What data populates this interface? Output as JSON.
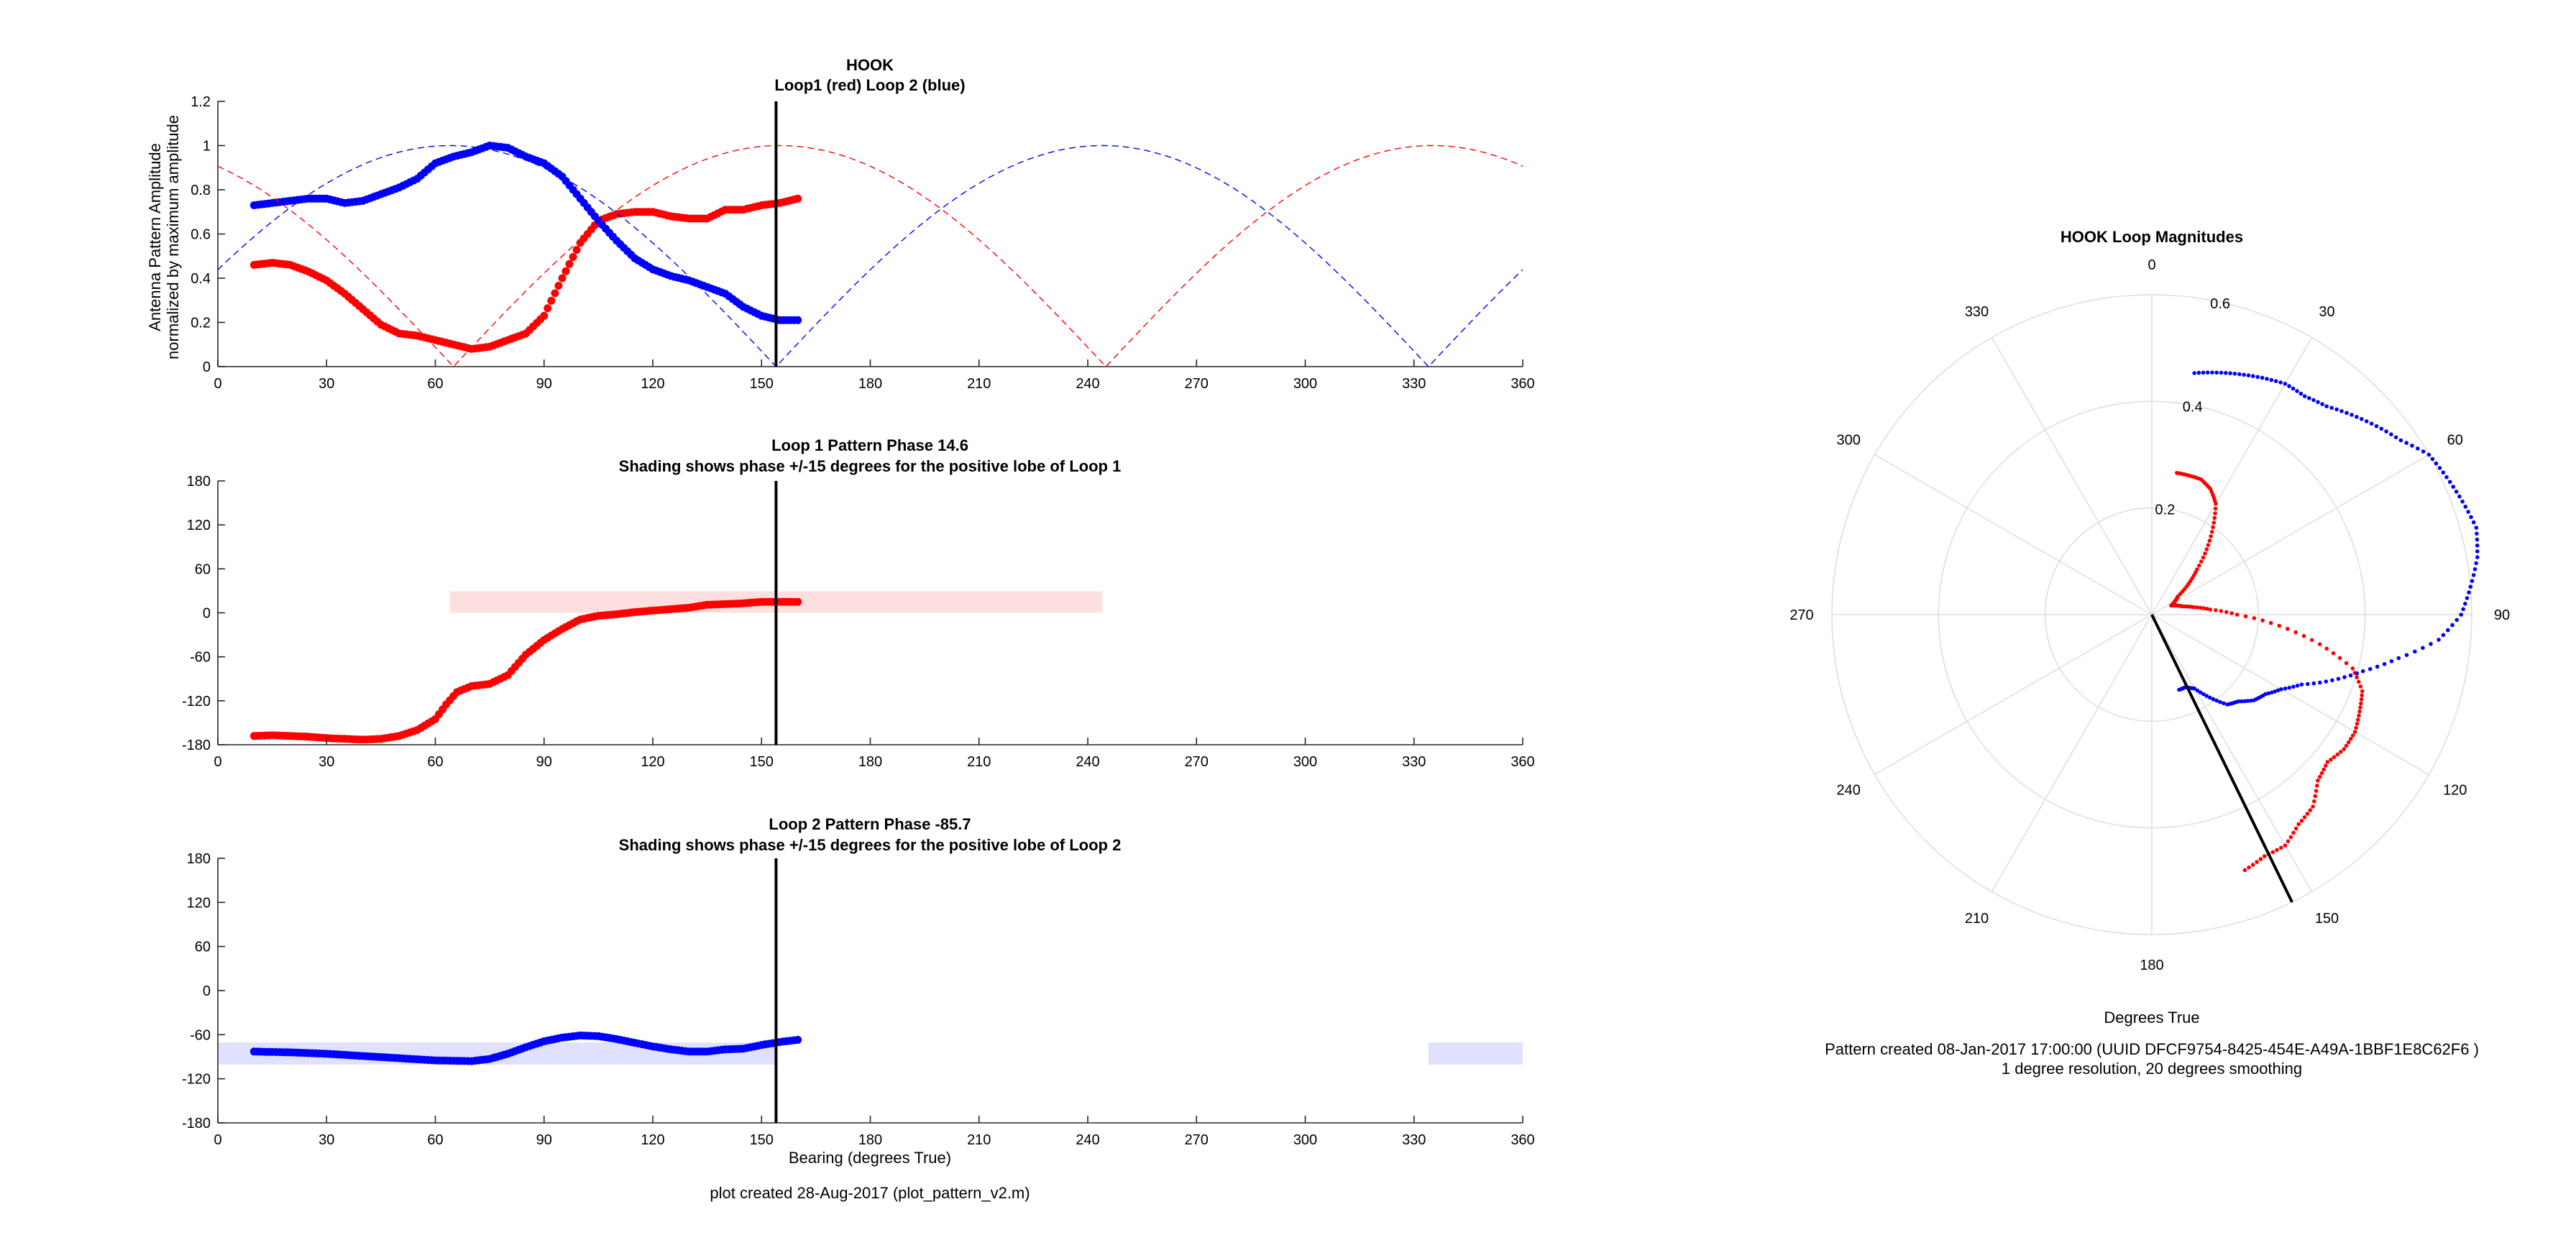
{
  "chart_data": [
    {
      "type": "line",
      "title": "HOOK",
      "subtitle": "Loop1 (red) Loop 2 (blue)",
      "xlabel": "",
      "ylabel": "Antenna Pattern Amplitude",
      "ylabel2": "normalized by maximum amplitude",
      "xlim": [
        0,
        360
      ],
      "ylim": [
        0,
        1.2
      ],
      "xticks": [
        "0",
        "30",
        "60",
        "90",
        "120",
        "150",
        "180",
        "210",
        "240",
        "270",
        "300",
        "330",
        "360"
      ],
      "yticks": [
        "0",
        "0.2",
        "0.4",
        "0.6",
        "0.8",
        "1",
        "1.2"
      ],
      "marker_bearing": 154,
      "series": [
        {
          "name": "Loop1",
          "color": "#ff0000",
          "style": "dots",
          "x": [
            10,
            15,
            20,
            25,
            30,
            35,
            40,
            45,
            50,
            55,
            60,
            65,
            70,
            75,
            80,
            85,
            90,
            95,
            100,
            105,
            110,
            115,
            120,
            125,
            130,
            135,
            140,
            145,
            150,
            155,
            160
          ],
          "y": [
            0.46,
            0.47,
            0.46,
            0.43,
            0.39,
            0.33,
            0.26,
            0.19,
            0.15,
            0.14,
            0.12,
            0.1,
            0.08,
            0.09,
            0.12,
            0.15,
            0.23,
            0.4,
            0.56,
            0.66,
            0.69,
            0.7,
            0.7,
            0.68,
            0.67,
            0.67,
            0.71,
            0.71,
            0.73,
            0.74,
            0.76
          ]
        },
        {
          "name": "Loop 2",
          "color": "#0000ff",
          "style": "dots",
          "x": [
            10,
            15,
            20,
            25,
            30,
            35,
            40,
            45,
            50,
            55,
            60,
            65,
            70,
            75,
            80,
            85,
            90,
            95,
            100,
            105,
            110,
            115,
            120,
            125,
            130,
            135,
            140,
            145,
            150,
            155,
            160
          ],
          "y": [
            0.73,
            0.74,
            0.75,
            0.76,
            0.76,
            0.74,
            0.75,
            0.78,
            0.81,
            0.85,
            0.92,
            0.95,
            0.97,
            1.0,
            0.99,
            0.95,
            0.92,
            0.86,
            0.76,
            0.66,
            0.57,
            0.49,
            0.44,
            0.41,
            0.39,
            0.36,
            0.33,
            0.27,
            0.23,
            0.21,
            0.21
          ]
        },
        {
          "name": "Loop1 model",
          "color": "#ff0000",
          "style": "dashed",
          "x": [
            0,
            360
          ],
          "model": {
            "abs_cos_zero": 65
          }
        },
        {
          "name": "Loop 2 model",
          "color": "#0000ff",
          "style": "dashed",
          "x": [
            0,
            360
          ],
          "model": {
            "abs_cos_zero": 154
          }
        }
      ]
    },
    {
      "type": "line",
      "title": "Loop 1 Pattern Phase 14.6",
      "subtitle": "Shading shows phase +/-15 degrees for the positive lobe of Loop 1",
      "xlim": [
        0,
        360
      ],
      "ylim": [
        -180,
        180
      ],
      "xticks": [
        "0",
        "30",
        "60",
        "90",
        "120",
        "150",
        "180",
        "210",
        "240",
        "270",
        "300",
        "330",
        "360"
      ],
      "yticks": [
        "-180",
        "-120",
        "-60",
        "0",
        "60",
        "120",
        "180"
      ],
      "marker_bearing": 154,
      "shading": [
        {
          "x0": 64,
          "x1": 244,
          "y0": 0,
          "y1": 29.6,
          "color": "#ffe0e0"
        }
      ],
      "series": [
        {
          "name": "Loop1",
          "color": "#ff0000",
          "style": "dots",
          "x": [
            10,
            15,
            20,
            25,
            30,
            35,
            40,
            45,
            50,
            55,
            60,
            63,
            66,
            70,
            75,
            80,
            85,
            90,
            95,
            100,
            105,
            110,
            115,
            120,
            125,
            130,
            135,
            140,
            145,
            150,
            155,
            160
          ],
          "y": [
            -168,
            -167,
            -168,
            -169,
            -171,
            -172,
            -173,
            -172,
            -168,
            -160,
            -145,
            -125,
            -108,
            -100,
            -97,
            -85,
            -57,
            -37,
            -22,
            -9,
            -4,
            -2,
            1,
            3,
            5,
            7,
            11,
            12,
            13,
            15,
            15,
            15
          ]
        }
      ]
    },
    {
      "type": "line",
      "title": "Loop 2 Pattern Phase -85.7",
      "subtitle": "Shading shows phase +/-15 degrees for the positive lobe of Loop 2",
      "xlabel": "Bearing (degrees True)",
      "xlim": [
        0,
        360
      ],
      "ylim": [
        -180,
        180
      ],
      "xticks": [
        "0",
        "30",
        "60",
        "90",
        "120",
        "150",
        "180",
        "210",
        "240",
        "270",
        "300",
        "330",
        "360"
      ],
      "yticks": [
        "-180",
        "-120",
        "-60",
        "0",
        "60",
        "120",
        "180"
      ],
      "marker_bearing": 154,
      "shading": [
        {
          "x0": 0,
          "x1": 154,
          "y0": -100.7,
          "y1": -70.7,
          "color": "#e0e0ff"
        },
        {
          "x0": 334,
          "x1": 360,
          "y0": -100.7,
          "y1": -70.7,
          "color": "#e0e0ff"
        }
      ],
      "series": [
        {
          "name": "Loop 2",
          "color": "#0000ff",
          "style": "dots",
          "x": [
            10,
            20,
            30,
            40,
            50,
            60,
            70,
            75,
            80,
            85,
            90,
            95,
            100,
            105,
            110,
            115,
            120,
            125,
            130,
            135,
            140,
            145,
            150,
            155,
            160
          ],
          "y": [
            -83,
            -84,
            -86,
            -89,
            -92,
            -95,
            -96,
            -93,
            -86,
            -77,
            -69,
            -64,
            -61,
            -62,
            -66,
            -71,
            -76,
            -80,
            -83,
            -83,
            -80,
            -79,
            -74,
            -70,
            -67
          ]
        }
      ]
    },
    {
      "type": "polar",
      "title": "HOOK Loop Magnitudes",
      "xlabel": "Degrees True",
      "angle_labels": [
        "0",
        "30",
        "60",
        "90",
        "120",
        "150",
        "180",
        "210",
        "240",
        "270",
        "300",
        "330"
      ],
      "radius_labels": [
        "0.2",
        "0.4",
        "0.6"
      ],
      "rlim": [
        0,
        0.6
      ],
      "marker_bearing": 154,
      "series": [
        {
          "name": "Loop1",
          "color": "#ff0000",
          "theta": [
            10,
            15,
            20,
            25,
            30,
            35,
            40,
            45,
            50,
            55,
            60,
            65,
            70,
            75,
            80,
            85,
            90,
            95,
            100,
            105,
            110,
            115,
            120,
            125,
            130,
            135,
            140,
            145,
            150,
            155,
            160
          ],
          "r": [
            0.27,
            0.27,
            0.27,
            0.26,
            0.24,
            0.2,
            0.16,
            0.12,
            0.09,
            0.06,
            0.05,
            0.04,
            0.05,
            0.06,
            0.08,
            0.11,
            0.16,
            0.24,
            0.32,
            0.39,
            0.42,
            0.43,
            0.44,
            0.44,
            0.43,
            0.44,
            0.47,
            0.48,
            0.5,
            0.5,
            0.51
          ]
        },
        {
          "name": "Loop 2",
          "color": "#0000ff",
          "theta": [
            10,
            15,
            20,
            25,
            30,
            35,
            40,
            45,
            50,
            55,
            60,
            65,
            70,
            75,
            80,
            85,
            90,
            95,
            100,
            105,
            110,
            115,
            120,
            125,
            130,
            135,
            140,
            145,
            150,
            155,
            160
          ],
          "r": [
            0.46,
            0.47,
            0.48,
            0.49,
            0.5,
            0.5,
            0.51,
            0.53,
            0.55,
            0.57,
            0.6,
            0.61,
            0.62,
            0.63,
            0.62,
            0.6,
            0.58,
            0.54,
            0.47,
            0.41,
            0.36,
            0.31,
            0.28,
            0.26,
            0.25,
            0.23,
            0.22,
            0.19,
            0.16,
            0.15,
            0.15
          ]
        }
      ]
    }
  ],
  "footer_left": "plot created 28-Aug-2017 (plot_pattern_v2.m)",
  "footer_right_1": "Pattern created 08-Jan-2017 17:00:00 (UUID DFCF9754-8425-454E-A49A-1BBF1E8C62F6 )",
  "footer_right_2": "1 degree resolution, 20 degrees smoothing"
}
